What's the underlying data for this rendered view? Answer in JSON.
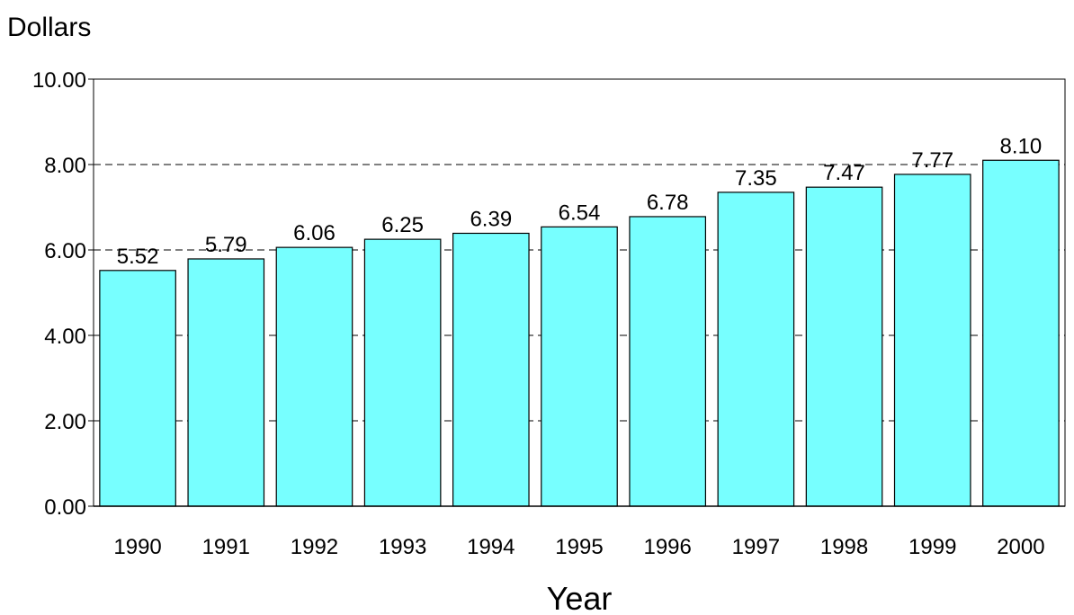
{
  "chart_data": {
    "type": "bar",
    "y_label": "Dollars",
    "x_label": "Year",
    "categories": [
      "1990",
      "1991",
      "1992",
      "1993",
      "1994",
      "1995",
      "1996",
      "1997",
      "1998",
      "1999",
      "2000"
    ],
    "values": [
      5.52,
      5.79,
      6.06,
      6.25,
      6.39,
      6.54,
      6.78,
      7.35,
      7.47,
      7.77,
      8.1
    ],
    "value_labels": [
      "5.52",
      "5.79",
      "6.06",
      "6.25",
      "6.39",
      "6.54",
      "6.78",
      "7.35",
      "7.47",
      "7.77",
      "8.10"
    ],
    "color": "#77ffff",
    "ylim": [
      0,
      10
    ],
    "yticks": [
      {
        "value": 0,
        "label": "0.00"
      },
      {
        "value": 2,
        "label": "2.00"
      },
      {
        "value": 4,
        "label": "4.00"
      },
      {
        "value": 6,
        "label": "6.00"
      },
      {
        "value": 8,
        "label": "8.00"
      },
      {
        "value": 10,
        "label": "10.00"
      }
    ],
    "grid": true
  }
}
